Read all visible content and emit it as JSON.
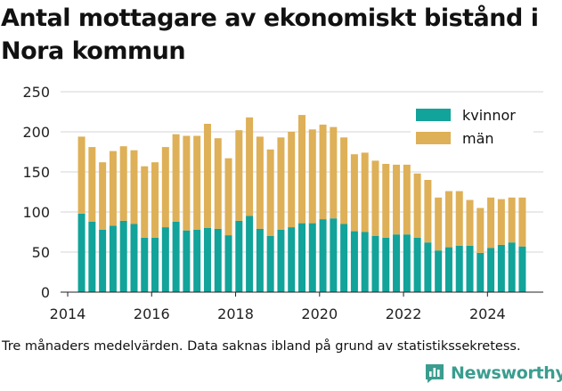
{
  "title": "Antal mottagare av ekonomiskt bistånd i Nora kommun",
  "caption": "Tre månaders medelvärden. Data saknas ibland på grund av statistikssekretess.",
  "brand": {
    "name": "Newsworthy",
    "color": "#3a9d8f",
    "logo": "bar-chart-logo-icon"
  },
  "chart_data": {
    "type": "bar",
    "stacked": true,
    "x_ticks": [
      "2014",
      "2016",
      "2018",
      "2020",
      "2022",
      "2024"
    ],
    "y_ticks": [
      "0",
      "50",
      "100",
      "150",
      "200",
      "250"
    ],
    "xlim": [
      2013.83,
      2025.33
    ],
    "ylim": [
      0,
      250
    ],
    "grid": "horizontal",
    "legend_position": "top-right",
    "x": [
      2014.33,
      2014.58,
      2014.83,
      2015.08,
      2015.33,
      2015.58,
      2015.83,
      2016.08,
      2016.33,
      2016.58,
      2016.83,
      2017.08,
      2017.33,
      2017.58,
      2017.83,
      2018.08,
      2018.33,
      2018.58,
      2018.83,
      2019.08,
      2019.33,
      2019.58,
      2019.83,
      2020.08,
      2020.33,
      2020.58,
      2020.83,
      2021.08,
      2021.33,
      2021.58,
      2021.83,
      2022.08,
      2022.33,
      2022.58,
      2022.83,
      2023.08,
      2023.33,
      2023.58,
      2023.83,
      2024.08,
      2024.33,
      2024.58,
      2024.83
    ],
    "series": [
      {
        "name": "kvinnor",
        "color": "#12a39a",
        "values": [
          98,
          88,
          78,
          83,
          89,
          85,
          68,
          68,
          81,
          88,
          77,
          78,
          80,
          79,
          71,
          89,
          95,
          79,
          70,
          78,
          81,
          86,
          86,
          91,
          92,
          85,
          76,
          75,
          70,
          68,
          72,
          72,
          68,
          62,
          52,
          56,
          58,
          58,
          49,
          55,
          59,
          62,
          57
        ]
      },
      {
        "name": "män",
        "color": "#deb057",
        "values": [
          96,
          93,
          84,
          93,
          93,
          92,
          89,
          94,
          100,
          109,
          118,
          117,
          130,
          113,
          96,
          113,
          123,
          115,
          108,
          115,
          119,
          135,
          117,
          118,
          114,
          108,
          96,
          99,
          94,
          92,
          87,
          87,
          80,
          78,
          66,
          70,
          68,
          57,
          56,
          63,
          57,
          56,
          61
        ]
      }
    ]
  }
}
